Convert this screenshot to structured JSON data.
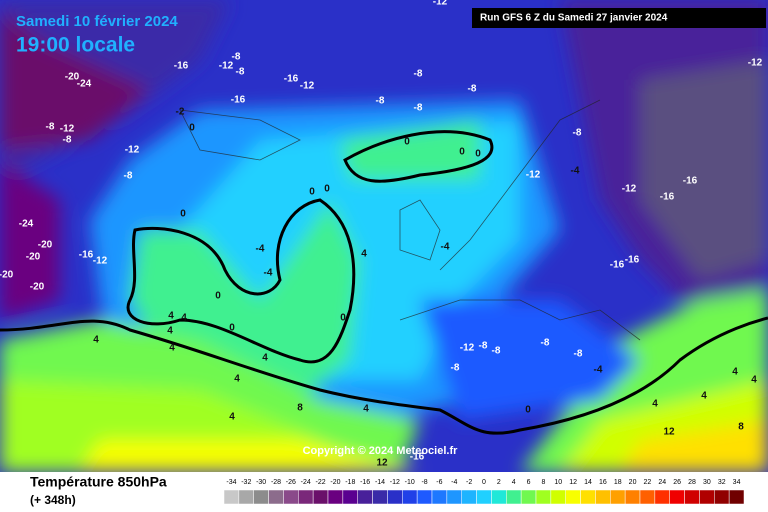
{
  "header": {
    "title": "Samedi 10 février 2024",
    "subtitle": "19:00 locale",
    "run": "Run GFS 6 Z du Samedi 27 janvier 2024"
  },
  "map": {
    "labels": [
      -12,
      -12,
      -8,
      -12,
      -8,
      -16,
      -16,
      -12,
      -16,
      -8,
      -8,
      -8,
      -8,
      -20,
      -24,
      -8,
      -12,
      -8,
      -12,
      -8,
      -2,
      0,
      0,
      0,
      0,
      0,
      0,
      0,
      -4,
      -4,
      4,
      -4,
      -12,
      -4,
      -8,
      -12,
      -16,
      -16,
      -16,
      -16,
      -24,
      -20,
      -20,
      -20,
      -20,
      -16,
      -12,
      0,
      0,
      0,
      4,
      4,
      4,
      4,
      4,
      4,
      4,
      4,
      8,
      4,
      -12,
      -8,
      -8,
      -8,
      -8,
      -8,
      -4,
      0,
      4,
      4,
      12,
      8,
      4,
      4,
      12,
      -16
    ]
  },
  "footer": {
    "title": "Température 850hPa",
    "lead": "(+ 348h)",
    "copyright": "Copyright © 2024 Meteociel.fr"
  },
  "legend": {
    "values": [
      -34,
      -32,
      -30,
      -28,
      -26,
      -24,
      -22,
      -20,
      -18,
      -16,
      -14,
      -12,
      -10,
      -8,
      -6,
      -4,
      -2,
      0,
      2,
      4,
      6,
      8,
      10,
      12,
      14,
      16,
      18,
      20,
      22,
      24,
      26,
      28,
      30,
      32,
      34
    ],
    "colors": [
      "#c8c8c8",
      "#a8a8a8",
      "#8c8c8c",
      "#8c6c8c",
      "#8a4a8a",
      "#7a287a",
      "#6a106a",
      "#6a0080",
      "#5a0090",
      "#48209a",
      "#3a2aa8",
      "#2a30c8",
      "#2040e8",
      "#1e5aff",
      "#1e78ff",
      "#1e96ff",
      "#1eb4ff",
      "#20d0ff",
      "#20e8d8",
      "#40f090",
      "#70f850",
      "#a0ff20",
      "#d0ff00",
      "#f8ff00",
      "#ffe000",
      "#ffc000",
      "#ffa000",
      "#ff8000",
      "#ff6000",
      "#ff3000",
      "#f00000",
      "#d00000",
      "#b00000",
      "#900000",
      "#700000"
    ]
  }
}
